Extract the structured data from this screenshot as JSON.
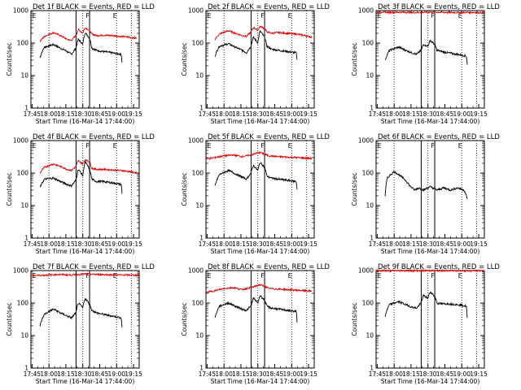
{
  "chart_data": [
    {
      "type": "line",
      "title": "Det 1f BLACK = Events, RED = LLD",
      "ylabel": "Counts/sec",
      "xlabel": "Start Time (16-Mar-14 17:44:00)",
      "x_ticks": [
        "17:45",
        "18:00",
        "18:15",
        "18:30",
        "18:45",
        "19:00",
        "19:15"
      ],
      "y_ticks": [
        "1",
        "10",
        "100",
        "1000"
      ],
      "yscale": "log",
      "ylim": [
        1,
        1000
      ],
      "xlim_minutes": [
        0,
        96
      ],
      "markers": [
        "E",
        "F",
        "E"
      ],
      "series": [
        {
          "color": "#000000",
          "x": [
            8,
            12,
            20,
            26,
            32,
            36,
            40,
            42,
            46,
            48,
            52,
            54,
            58,
            64,
            72,
            80,
            81
          ],
          "values": [
            35,
            75,
            90,
            70,
            55,
            45,
            70,
            130,
            90,
            210,
            140,
            70,
            60,
            55,
            50,
            45,
            22
          ]
        },
        {
          "color": "#e00000",
          "x": [
            8,
            12,
            20,
            26,
            32,
            36,
            40,
            42,
            46,
            48,
            52,
            54,
            58,
            64,
            72,
            80,
            88,
            94
          ],
          "values": [
            110,
            160,
            210,
            170,
            130,
            120,
            170,
            260,
            200,
            300,
            240,
            190,
            170,
            175,
            170,
            160,
            150,
            140
          ]
        }
      ]
    },
    {
      "type": "line",
      "title": "Det 2f BLACK = Events, RED = LLD",
      "ylabel": "Counts/sec",
      "xlabel": "Start Time (16-Mar-14 17:44:00)",
      "x_ticks": [
        "17:45",
        "18:00",
        "18:15",
        "18:30",
        "18:45",
        "19:00",
        "19:15"
      ],
      "y_ticks": [
        "1",
        "10",
        "100",
        "1000"
      ],
      "yscale": "log",
      "ylim": [
        1,
        1000
      ],
      "xlim_minutes": [
        0,
        96
      ],
      "markers": [
        "E",
        "F",
        "E"
      ],
      "series": [
        {
          "color": "#000000",
          "x": [
            8,
            12,
            20,
            26,
            32,
            36,
            40,
            42,
            46,
            48,
            52,
            54,
            58,
            64,
            72,
            80,
            81
          ],
          "values": [
            40,
            80,
            95,
            75,
            60,
            50,
            80,
            150,
            100,
            230,
            150,
            80,
            65,
            60,
            55,
            50,
            25
          ]
        },
        {
          "color": "#e00000",
          "x": [
            8,
            12,
            20,
            26,
            32,
            36,
            40,
            42,
            46,
            48,
            52,
            54,
            58,
            64,
            72,
            80,
            88,
            94
          ],
          "values": [
            130,
            190,
            240,
            200,
            170,
            160,
            220,
            300,
            250,
            330,
            280,
            220,
            200,
            210,
            200,
            190,
            170,
            150
          ]
        }
      ]
    },
    {
      "type": "line",
      "title": "Det 3f BLACK = Events, RED = LLD",
      "ylabel": "Counts/sec",
      "xlabel": "Start Time (16-Mar-14 17:44:00)",
      "x_ticks": [
        "17:45",
        "18:00",
        "18:15",
        "18:30",
        "18:45",
        "19:00",
        "19:15"
      ],
      "y_ticks": [
        "1",
        "10",
        "100",
        "1000"
      ],
      "yscale": "log",
      "ylim": [
        1,
        1000
      ],
      "xlim_minutes": [
        0,
        96
      ],
      "markers": [
        "E",
        "F",
        "E"
      ],
      "series": [
        {
          "color": "#000000",
          "x": [
            8,
            12,
            20,
            26,
            32,
            36,
            40,
            42,
            46,
            48,
            52,
            54,
            58,
            64,
            72,
            80,
            81
          ],
          "values": [
            30,
            60,
            75,
            60,
            50,
            45,
            60,
            90,
            80,
            120,
            90,
            60,
            55,
            50,
            45,
            40,
            18
          ]
        },
        {
          "color": "#e00000",
          "x": [
            0,
            12,
            24,
            36,
            48,
            60,
            72,
            84,
            96
          ],
          "values": [
            900,
            880,
            890,
            870,
            900,
            880,
            870,
            880,
            860
          ]
        }
      ]
    },
    {
      "type": "line",
      "title": "Det 4f BLACK = Events, RED = LLD",
      "ylabel": "Counts/sec",
      "xlabel": "Start Time (16-Mar-14 17:44:00)",
      "x_ticks": [
        "17:45",
        "18:00",
        "18:15",
        "18:30",
        "18:45",
        "19:00",
        "19:15"
      ],
      "y_ticks": [
        "1",
        "10",
        "100",
        "1000"
      ],
      "yscale": "log",
      "ylim": [
        1,
        1000
      ],
      "xlim_minutes": [
        0,
        96
      ],
      "markers": [
        "E",
        "F",
        "E"
      ],
      "series": [
        {
          "color": "#000000",
          "x": [
            8,
            12,
            20,
            26,
            32,
            36,
            40,
            42,
            46,
            48,
            52,
            54,
            58,
            64,
            72,
            80,
            81
          ],
          "values": [
            35,
            65,
            70,
            55,
            45,
            40,
            60,
            130,
            80,
            220,
            130,
            65,
            55,
            55,
            50,
            45,
            18
          ]
        },
        {
          "color": "#e00000",
          "x": [
            8,
            12,
            20,
            26,
            32,
            36,
            40,
            42,
            46,
            48,
            52,
            54,
            58,
            64,
            72,
            80,
            88,
            94
          ],
          "values": [
            100,
            150,
            190,
            160,
            130,
            120,
            160,
            240,
            190,
            260,
            220,
            140,
            130,
            130,
            125,
            120,
            110,
            100
          ]
        }
      ]
    },
    {
      "type": "line",
      "title": "Det 5f BLACK = Events, RED = LLD",
      "ylabel": "Counts/sec",
      "xlabel": "Start Time (16-Mar-14 17:44:00)",
      "x_ticks": [
        "17:45",
        "18:00",
        "18:15",
        "18:30",
        "18:45",
        "19:00",
        "19:15"
      ],
      "y_ticks": [
        "1",
        "10",
        "100",
        "1000"
      ],
      "yscale": "log",
      "ylim": [
        1,
        1000
      ],
      "xlim_minutes": [
        0,
        96
      ],
      "markers": [
        "E",
        "F",
        "E"
      ],
      "series": [
        {
          "color": "#000000",
          "x": [
            8,
            12,
            20,
            26,
            32,
            36,
            40,
            42,
            46,
            48,
            52,
            54,
            58,
            64,
            72,
            80,
            81
          ],
          "values": [
            40,
            90,
            120,
            95,
            75,
            65,
            100,
            170,
            120,
            210,
            150,
            80,
            70,
            65,
            60,
            55,
            25
          ]
        },
        {
          "color": "#e00000",
          "x": [
            0,
            8,
            16,
            24,
            32,
            40,
            44,
            48,
            52,
            56,
            64,
            72,
            80,
            88,
            94
          ],
          "values": [
            270,
            300,
            340,
            360,
            320,
            360,
            400,
            430,
            380,
            340,
            320,
            310,
            300,
            290,
            280
          ]
        }
      ]
    },
    {
      "type": "line",
      "title": "Det 6f BLACK = Events, RED = LLD",
      "ylabel": "Counts/sec",
      "xlabel": "Start Time (16-Mar-14 17:44:00)",
      "x_ticks": [
        "17:45",
        "18:00",
        "18:15",
        "18:30",
        "18:45",
        "19:00",
        "19:15"
      ],
      "y_ticks": [
        "1",
        "10",
        "100",
        "1000"
      ],
      "yscale": "log",
      "ylim": [
        1,
        1000
      ],
      "xlim_minutes": [
        0,
        96
      ],
      "markers": [
        "E",
        "F",
        "E"
      ],
      "series": [
        {
          "color": "#000000",
          "x": [
            8,
            10,
            16,
            20,
            26,
            30,
            34,
            38,
            42,
            48,
            54,
            60,
            66,
            72,
            78,
            81
          ],
          "values": [
            20,
            70,
            110,
            90,
            60,
            40,
            30,
            35,
            30,
            38,
            30,
            35,
            30,
            35,
            30,
            15
          ]
        }
      ]
    },
    {
      "type": "line",
      "title": "Det 7f BLACK = Events, RED = LLD",
      "ylabel": "Counts/sec",
      "xlabel": "Start Time (16-Mar-14 17:44:00)",
      "x_ticks": [
        "17:45",
        "18:00",
        "18:15",
        "18:30",
        "18:45",
        "19:00",
        "19:15"
      ],
      "y_ticks": [
        "1",
        "10",
        "100",
        "1000"
      ],
      "yscale": "log",
      "ylim": [
        1,
        1000
      ],
      "xlim_minutes": [
        0,
        96
      ],
      "markers": [
        "E",
        "F",
        "E"
      ],
      "series": [
        {
          "color": "#000000",
          "x": [
            8,
            12,
            20,
            26,
            32,
            36,
            40,
            42,
            46,
            48,
            52,
            54,
            58,
            64,
            72,
            80,
            81
          ],
          "values": [
            20,
            45,
            65,
            50,
            40,
            35,
            50,
            100,
            70,
            140,
            90,
            60,
            50,
            45,
            40,
            35,
            12
          ]
        },
        {
          "color": "#e00000",
          "x": [
            0,
            12,
            24,
            36,
            48,
            60,
            72,
            84,
            96
          ],
          "values": [
            700,
            720,
            760,
            730,
            780,
            760,
            740,
            730,
            720
          ]
        }
      ]
    },
    {
      "type": "line",
      "title": "Det 8f BLACK = Events, RED = LLD",
      "ylabel": "Counts/sec",
      "xlabel": "Start Time (16-Mar-14 17:44:00)",
      "x_ticks": [
        "17:45",
        "18:00",
        "18:15",
        "18:30",
        "18:45",
        "19:00",
        "19:15"
      ],
      "y_ticks": [
        "1",
        "10",
        "100",
        "1000"
      ],
      "yscale": "log",
      "ylim": [
        1,
        1000
      ],
      "xlim_minutes": [
        0,
        96
      ],
      "markers": [
        "E",
        "F",
        "E"
      ],
      "series": [
        {
          "color": "#000000",
          "x": [
            8,
            12,
            20,
            26,
            32,
            36,
            40,
            42,
            46,
            48,
            52,
            54,
            58,
            64,
            72,
            80,
            81
          ],
          "values": [
            35,
            80,
            100,
            80,
            65,
            60,
            80,
            140,
            100,
            170,
            120,
            80,
            70,
            65,
            60,
            55,
            20
          ]
        },
        {
          "color": "#e00000",
          "x": [
            0,
            8,
            16,
            24,
            32,
            40,
            44,
            48,
            52,
            56,
            64,
            72,
            80,
            88,
            94
          ],
          "values": [
            210,
            240,
            280,
            300,
            260,
            300,
            330,
            370,
            320,
            280,
            270,
            260,
            250,
            240,
            230
          ]
        }
      ]
    },
    {
      "type": "line",
      "title": "Det 9f BLACK = Events, RED = LLD",
      "ylabel": "Counts/sec",
      "xlabel": "Start Time (16-Mar-14 17:44:00)",
      "x_ticks": [
        "17:45",
        "18:00",
        "18:15",
        "18:30",
        "18:45",
        "19:00",
        "19:15"
      ],
      "y_ticks": [
        "1",
        "10",
        "100",
        "1000"
      ],
      "yscale": "log",
      "ylim": [
        1,
        1000
      ],
      "xlim_minutes": [
        0,
        96
      ],
      "markers": [
        "E",
        "F",
        "E"
      ],
      "series": [
        {
          "color": "#000000",
          "x": [
            8,
            12,
            20,
            26,
            32,
            36,
            40,
            42,
            46,
            48,
            52,
            54,
            58,
            64,
            72,
            80,
            81
          ],
          "values": [
            40,
            90,
            110,
            90,
            75,
            70,
            100,
            170,
            140,
            220,
            160,
            100,
            95,
            95,
            90,
            80,
            22
          ]
        },
        {
          "color": "#e00000",
          "x": [
            0,
            12,
            24,
            36,
            48,
            60,
            72,
            84,
            96
          ],
          "values": [
            1000,
            980,
            1000,
            990,
            1000,
            990,
            1000,
            980,
            990
          ]
        }
      ]
    }
  ]
}
